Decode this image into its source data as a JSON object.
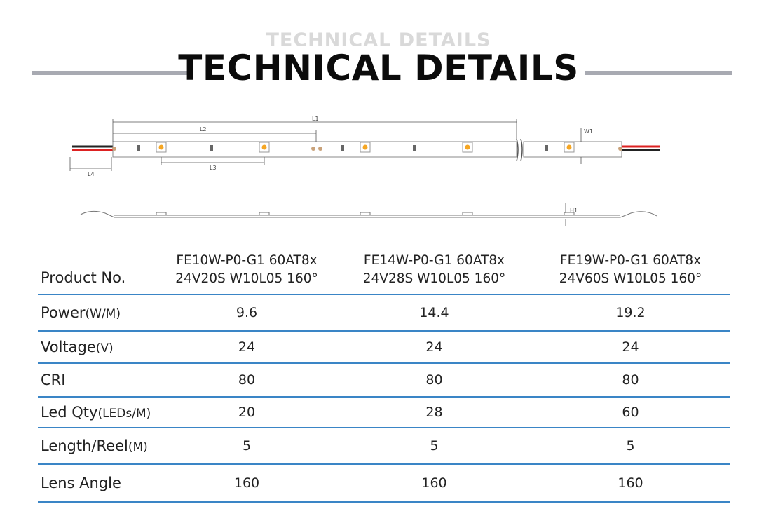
{
  "header": {
    "ghost_title": "TECHNICAL DETAILS",
    "title": "TECHNICAL DETAILS"
  },
  "drawing": {
    "labels": {
      "l1": "L1",
      "l2": "L2",
      "l3": "L3",
      "l4": "L4",
      "w1": "W1",
      "h1": "H1"
    }
  },
  "table": {
    "product_label": "Product No.",
    "models": [
      {
        "line1": "FE10W-P0-G1 60AT8x",
        "line2": "24V20S W10L05 160°"
      },
      {
        "line1": "FE14W-P0-G1 60AT8x",
        "line2": "24V28S W10L05 160°"
      },
      {
        "line1": "FE19W-P0-G1 60AT8x",
        "line2": "24V60S W10L05 160°"
      }
    ],
    "rows": [
      {
        "label": "Power",
        "unit": "(W/M)",
        "values": [
          "9.6",
          "14.4",
          "19.2"
        ]
      },
      {
        "label": "Voltage",
        "unit": "(V)",
        "values": [
          "24",
          "24",
          "24"
        ]
      },
      {
        "label": "CRI",
        "unit": "",
        "values": [
          "80",
          "80",
          "80"
        ]
      },
      {
        "label": "Led Qty",
        "unit": "(LEDs/M)",
        "values": [
          "20",
          "28",
          "60"
        ]
      },
      {
        "label": "Length/Reel",
        "unit": "(M)",
        "values": [
          "5",
          "5",
          "5"
        ]
      },
      {
        "label": "Lens Angle",
        "unit": "",
        "values": [
          "160",
          "160",
          "160"
        ]
      }
    ]
  }
}
